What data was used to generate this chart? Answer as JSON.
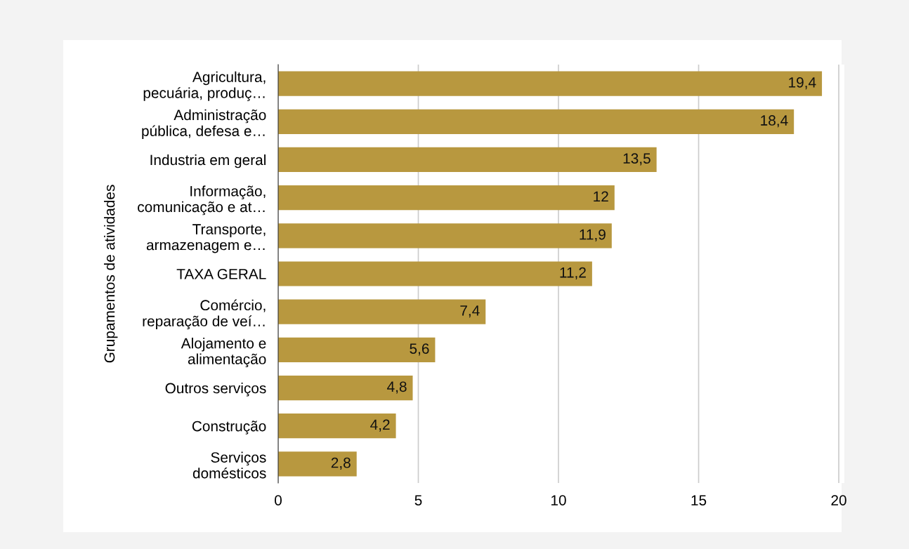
{
  "chart_data": {
    "type": "bar",
    "orientation": "horizontal",
    "ylabel": "Grupamentos de atividades",
    "categories": [
      "Agricultura,\npecuária, produç…",
      "Administração\npública, defesa e…",
      "Industria em geral",
      "Informação,\ncomunicação e at…",
      "Transporte,\narmazenagem e…",
      "TAXA GERAL",
      "Comércio,\nreparação de veí…",
      "Alojamento e\nalimentação",
      "Outros serviços",
      "Construção",
      "Serviços\ndomésticos"
    ],
    "values": [
      19.4,
      18.4,
      13.5,
      12,
      11.9,
      11.2,
      7.4,
      5.6,
      4.8,
      4.2,
      2.8
    ],
    "value_labels": [
      "19,4",
      "18,4",
      "13,5",
      "12",
      "11,9",
      "11,2",
      "7,4",
      "5,6",
      "4,8",
      "4,2",
      "2,8"
    ],
    "color": "#b8983f",
    "xlim": [
      0,
      20.2
    ],
    "xticks": [
      0,
      5,
      10,
      15,
      20
    ],
    "grid": "x"
  }
}
